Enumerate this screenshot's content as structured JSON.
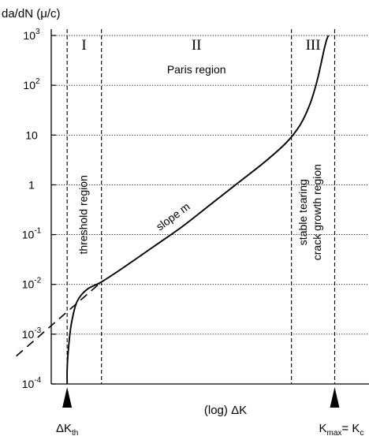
{
  "chart_data": {
    "type": "line",
    "ylabel": "da/dN (μ/c)",
    "xlabel": "(log) ΔK",
    "y_scale": "log",
    "ylim_exp": [
      -4,
      3
    ],
    "y_ticks": [
      {
        "exp": -4,
        "base": "10",
        "sup": "-4"
      },
      {
        "exp": -3,
        "base": "10",
        "sup": "-3"
      },
      {
        "exp": -2,
        "base": "10",
        "sup": "-2"
      },
      {
        "exp": -1,
        "base": "10",
        "sup": "-1"
      },
      {
        "exp": 0,
        "base": "1",
        "sup": ""
      },
      {
        "exp": 1,
        "base": "10",
        "sup": ""
      },
      {
        "exp": 2,
        "base": "10",
        "sup": "2"
      },
      {
        "exp": 3,
        "base": "10",
        "sup": "3"
      }
    ],
    "x_range": [
      0,
      1
    ],
    "regions": [
      {
        "numeral": "I",
        "x_center": 0.103,
        "description": "threshold region"
      },
      {
        "numeral": "II",
        "x_center": 0.457,
        "title": "Paris region"
      },
      {
        "numeral": "III",
        "x_center": 0.824,
        "description_lines": [
          "stable tearing",
          "crack growth region"
        ]
      }
    ],
    "region_bounds": [
      0.05,
      0.158,
      0.756,
      0.892
    ],
    "slope_label": "slope m",
    "threshold_marker": {
      "base": "ΔK",
      "sub": "th",
      "x": 0.05
    },
    "critical_marker": {
      "base": "K",
      "sub1": "max",
      "mid": "= K",
      "sub2": "c",
      "x": 0.892
    },
    "curve": {
      "x": [
        0.05,
        0.05,
        0.054,
        0.063,
        0.081,
        0.113,
        0.158,
        0.23,
        0.32,
        0.41,
        0.5,
        0.59,
        0.67,
        0.74,
        0.783,
        0.813,
        0.833,
        0.848,
        0.858,
        0.866,
        0.872
      ],
      "log_y": [
        -4.0,
        -3.7,
        -3.3,
        -2.8,
        -2.35,
        -2.1,
        -1.95,
        -1.65,
        -1.25,
        -0.85,
        -0.4,
        0.05,
        0.45,
        0.85,
        1.2,
        1.6,
        2.0,
        2.4,
        2.7,
        2.9,
        3.0
      ]
    },
    "asymptote": {
      "x": [
        -0.11,
        0.158
      ],
      "log_y": [
        -3.44,
        -1.95
      ]
    }
  }
}
